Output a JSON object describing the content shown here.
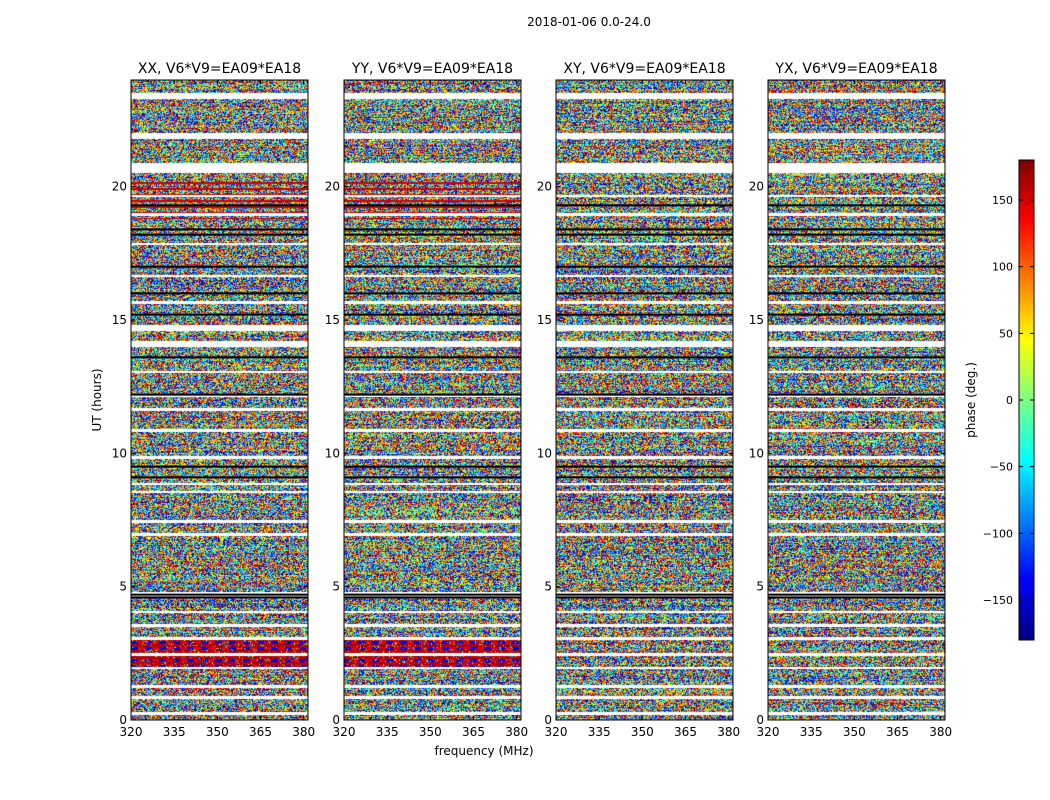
{
  "figure": {
    "suptitle": "2018-01-06 0.0-24.0",
    "shared_xlabel": "frequency (MHz)",
    "shared_ylabel": "UT (hours)"
  },
  "chart_data": {
    "type": "heatmap",
    "suptitle": "2018-01-06 0.0-24.0",
    "xlabel": "frequency (MHz)",
    "ylabel": "UT (hours)",
    "xlim": [
      320,
      381.5
    ],
    "ylim": [
      0,
      24
    ],
    "xticks": [
      320,
      335,
      350,
      365,
      380
    ],
    "yticks": [
      0,
      5,
      10,
      15,
      20
    ],
    "colormap": "jet",
    "colorbar": {
      "label": "phase (deg.)",
      "range": [
        -180,
        180
      ],
      "ticks": [
        150,
        100,
        50,
        0,
        -50,
        -100,
        -150
      ],
      "tick_labels": [
        "150",
        "100",
        "50",
        "0",
        "−50",
        "−100",
        "−150"
      ]
    },
    "panels": [
      {
        "name": "XX",
        "title": "XX, V6*V9=EA09*EA18",
        "seed": 11
      },
      {
        "name": "YY",
        "title": "YY, V6*V9=EA09*EA18",
        "seed": 23
      },
      {
        "name": "XY",
        "title": "XY, V6*V9=EA09*EA18",
        "seed": 37
      },
      {
        "name": "YX",
        "title": "YX, V6*V9=EA09*EA18",
        "seed": 53
      }
    ],
    "flagged_gaps_hours": [
      [
        23.3,
        23.5
      ],
      [
        21.8,
        22.0
      ],
      [
        20.5,
        20.9
      ],
      [
        19.6,
        19.7
      ],
      [
        18.9,
        19.0
      ],
      [
        17.8,
        17.9
      ],
      [
        16.6,
        16.7
      ],
      [
        15.6,
        15.7
      ],
      [
        14.6,
        14.8
      ],
      [
        14.0,
        14.2
      ],
      [
        13.0,
        13.1
      ],
      [
        12.1,
        12.2
      ],
      [
        11.6,
        11.7
      ],
      [
        10.8,
        10.9
      ],
      [
        9.8,
        9.9
      ],
      [
        8.8,
        8.9
      ],
      [
        8.5,
        8.6
      ],
      [
        7.4,
        7.5
      ],
      [
        6.9,
        7.0
      ],
      [
        4.6,
        4.8
      ],
      [
        4.0,
        4.1
      ],
      [
        3.5,
        3.6
      ],
      [
        3.0,
        3.1
      ],
      [
        2.4,
        2.5
      ],
      [
        1.9,
        2.0
      ],
      [
        1.2,
        1.3
      ],
      [
        0.8,
        0.9
      ],
      [
        0.2,
        0.3
      ]
    ],
    "dark_lines_hours": [
      19.3,
      18.4,
      18.2,
      17.0,
      16.0,
      15.2,
      13.6,
      12.2,
      9.5,
      9.1,
      4.7,
      4.6
    ],
    "coherent_bands": [
      {
        "panel": "XX",
        "from": 1.9,
        "to": 3.0,
        "note": "red/blue stripes"
      },
      {
        "panel": "YY",
        "from": 1.9,
        "to": 3.0,
        "note": "red/blue stripes"
      },
      {
        "panel": "XX",
        "from": 18.8,
        "to": 20.3,
        "note": "red rows"
      },
      {
        "panel": "YY",
        "from": 18.8,
        "to": 20.3,
        "note": "red rows"
      }
    ]
  }
}
